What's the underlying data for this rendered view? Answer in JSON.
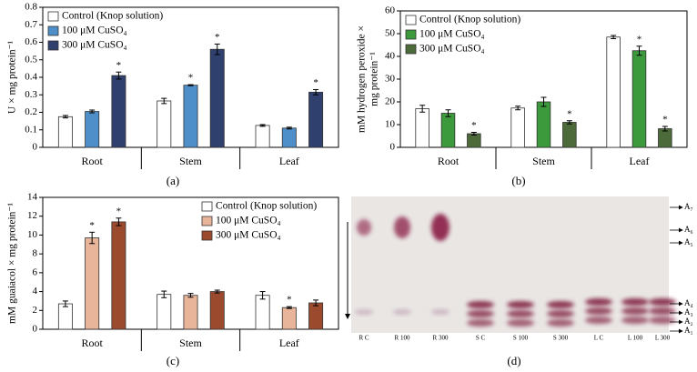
{
  "chart_data": [
    {
      "type": "bar",
      "label": "(a)",
      "ylabel": [
        "U × mg protein⁻¹"
      ],
      "categories": [
        "Root",
        "Stem",
        "Leaf"
      ],
      "series": [
        {
          "name": "Control (Knop solution)",
          "color": "#ffffff",
          "values": [
            0.175,
            0.265,
            0.125
          ],
          "errors": [
            0.007,
            0.015,
            0.005
          ],
          "significance": [
            null,
            null,
            null
          ]
        },
        {
          "name": "100 μM CuSO₄",
          "color": "#4f8fc9",
          "values": [
            0.205,
            0.355,
            0.11
          ],
          "errors": [
            0.008,
            0.003,
            0.005
          ],
          "significance": [
            null,
            "*",
            null
          ]
        },
        {
          "name": "300 μM CuSO₄",
          "color": "#2f3f6e",
          "values": [
            0.41,
            0.56,
            0.315
          ],
          "errors": [
            0.02,
            0.03,
            0.015
          ],
          "significance": [
            "*",
            "*",
            "*"
          ]
        }
      ],
      "ylim": [
        0,
        0.8
      ],
      "yticks": [
        0,
        0.1,
        0.2,
        0.3,
        0.4,
        0.5,
        0.6,
        0.7,
        0.8
      ],
      "legend": "upper left"
    },
    {
      "type": "bar",
      "label": "(b)",
      "ylabel": [
        "mM hydrogen peroxide ×",
        "mg protein⁻¹"
      ],
      "categories": [
        "Root",
        "Stem",
        "Leaf"
      ],
      "series": [
        {
          "name": "Control (Knop solution)",
          "color": "#ffffff",
          "values": [
            17,
            17.3,
            48.5
          ],
          "errors": [
            1.5,
            0.8,
            0.7
          ],
          "significance": [
            null,
            null,
            null
          ]
        },
        {
          "name": "100 μM CuSO₄",
          "color": "#3c9a3c",
          "values": [
            15,
            20,
            42.5
          ],
          "errors": [
            1.5,
            2,
            2
          ],
          "significance": [
            null,
            null,
            "*"
          ]
        },
        {
          "name": "300 μM CuSO₄",
          "color": "#4d6b3a",
          "values": [
            6,
            11,
            8.2
          ],
          "errors": [
            0.6,
            0.7,
            1
          ],
          "significance": [
            "*",
            "*",
            "*"
          ]
        }
      ],
      "ylim": [
        0,
        60
      ],
      "yticks": [
        0,
        10,
        20,
        30,
        40,
        50,
        60
      ],
      "legend": "upper left"
    },
    {
      "type": "bar",
      "label": "(c)",
      "ylabel": [
        "mM guaiacol × mg protein⁻¹"
      ],
      "categories": [
        "Root",
        "Stem",
        "Leaf"
      ],
      "series": [
        {
          "name": "Control (Knop solution)",
          "color": "#ffffff",
          "values": [
            2.7,
            3.7,
            3.6
          ],
          "errors": [
            0.3,
            0.35,
            0.4
          ],
          "significance": [
            null,
            null,
            null
          ]
        },
        {
          "name": "100 μM CuSO₄",
          "color": "#e8b49a",
          "values": [
            9.7,
            3.6,
            2.3
          ],
          "errors": [
            0.6,
            0.2,
            0.1
          ],
          "significance": [
            "*",
            null,
            "*"
          ]
        },
        {
          "name": "300 μM CuSO₄",
          "color": "#9b4a2e",
          "values": [
            11.4,
            4.0,
            2.8
          ],
          "errors": [
            0.4,
            0.15,
            0.3
          ],
          "significance": [
            "*",
            null,
            null
          ]
        }
      ],
      "ylim": [
        0,
        14
      ],
      "yticks": [
        0,
        2,
        4,
        6,
        8,
        10,
        12,
        14
      ],
      "legend": "upper right"
    }
  ],
  "gel": {
    "label": "(d)",
    "lanes": [
      "R C",
      "R 100",
      "R 300",
      "S C",
      "S 100",
      "S 300",
      "L C",
      "L 100",
      "L 300"
    ],
    "bands": [
      "A₇",
      "A₆",
      "A₅",
      "A₄",
      "A₃",
      "A₂",
      "A₁"
    ]
  }
}
